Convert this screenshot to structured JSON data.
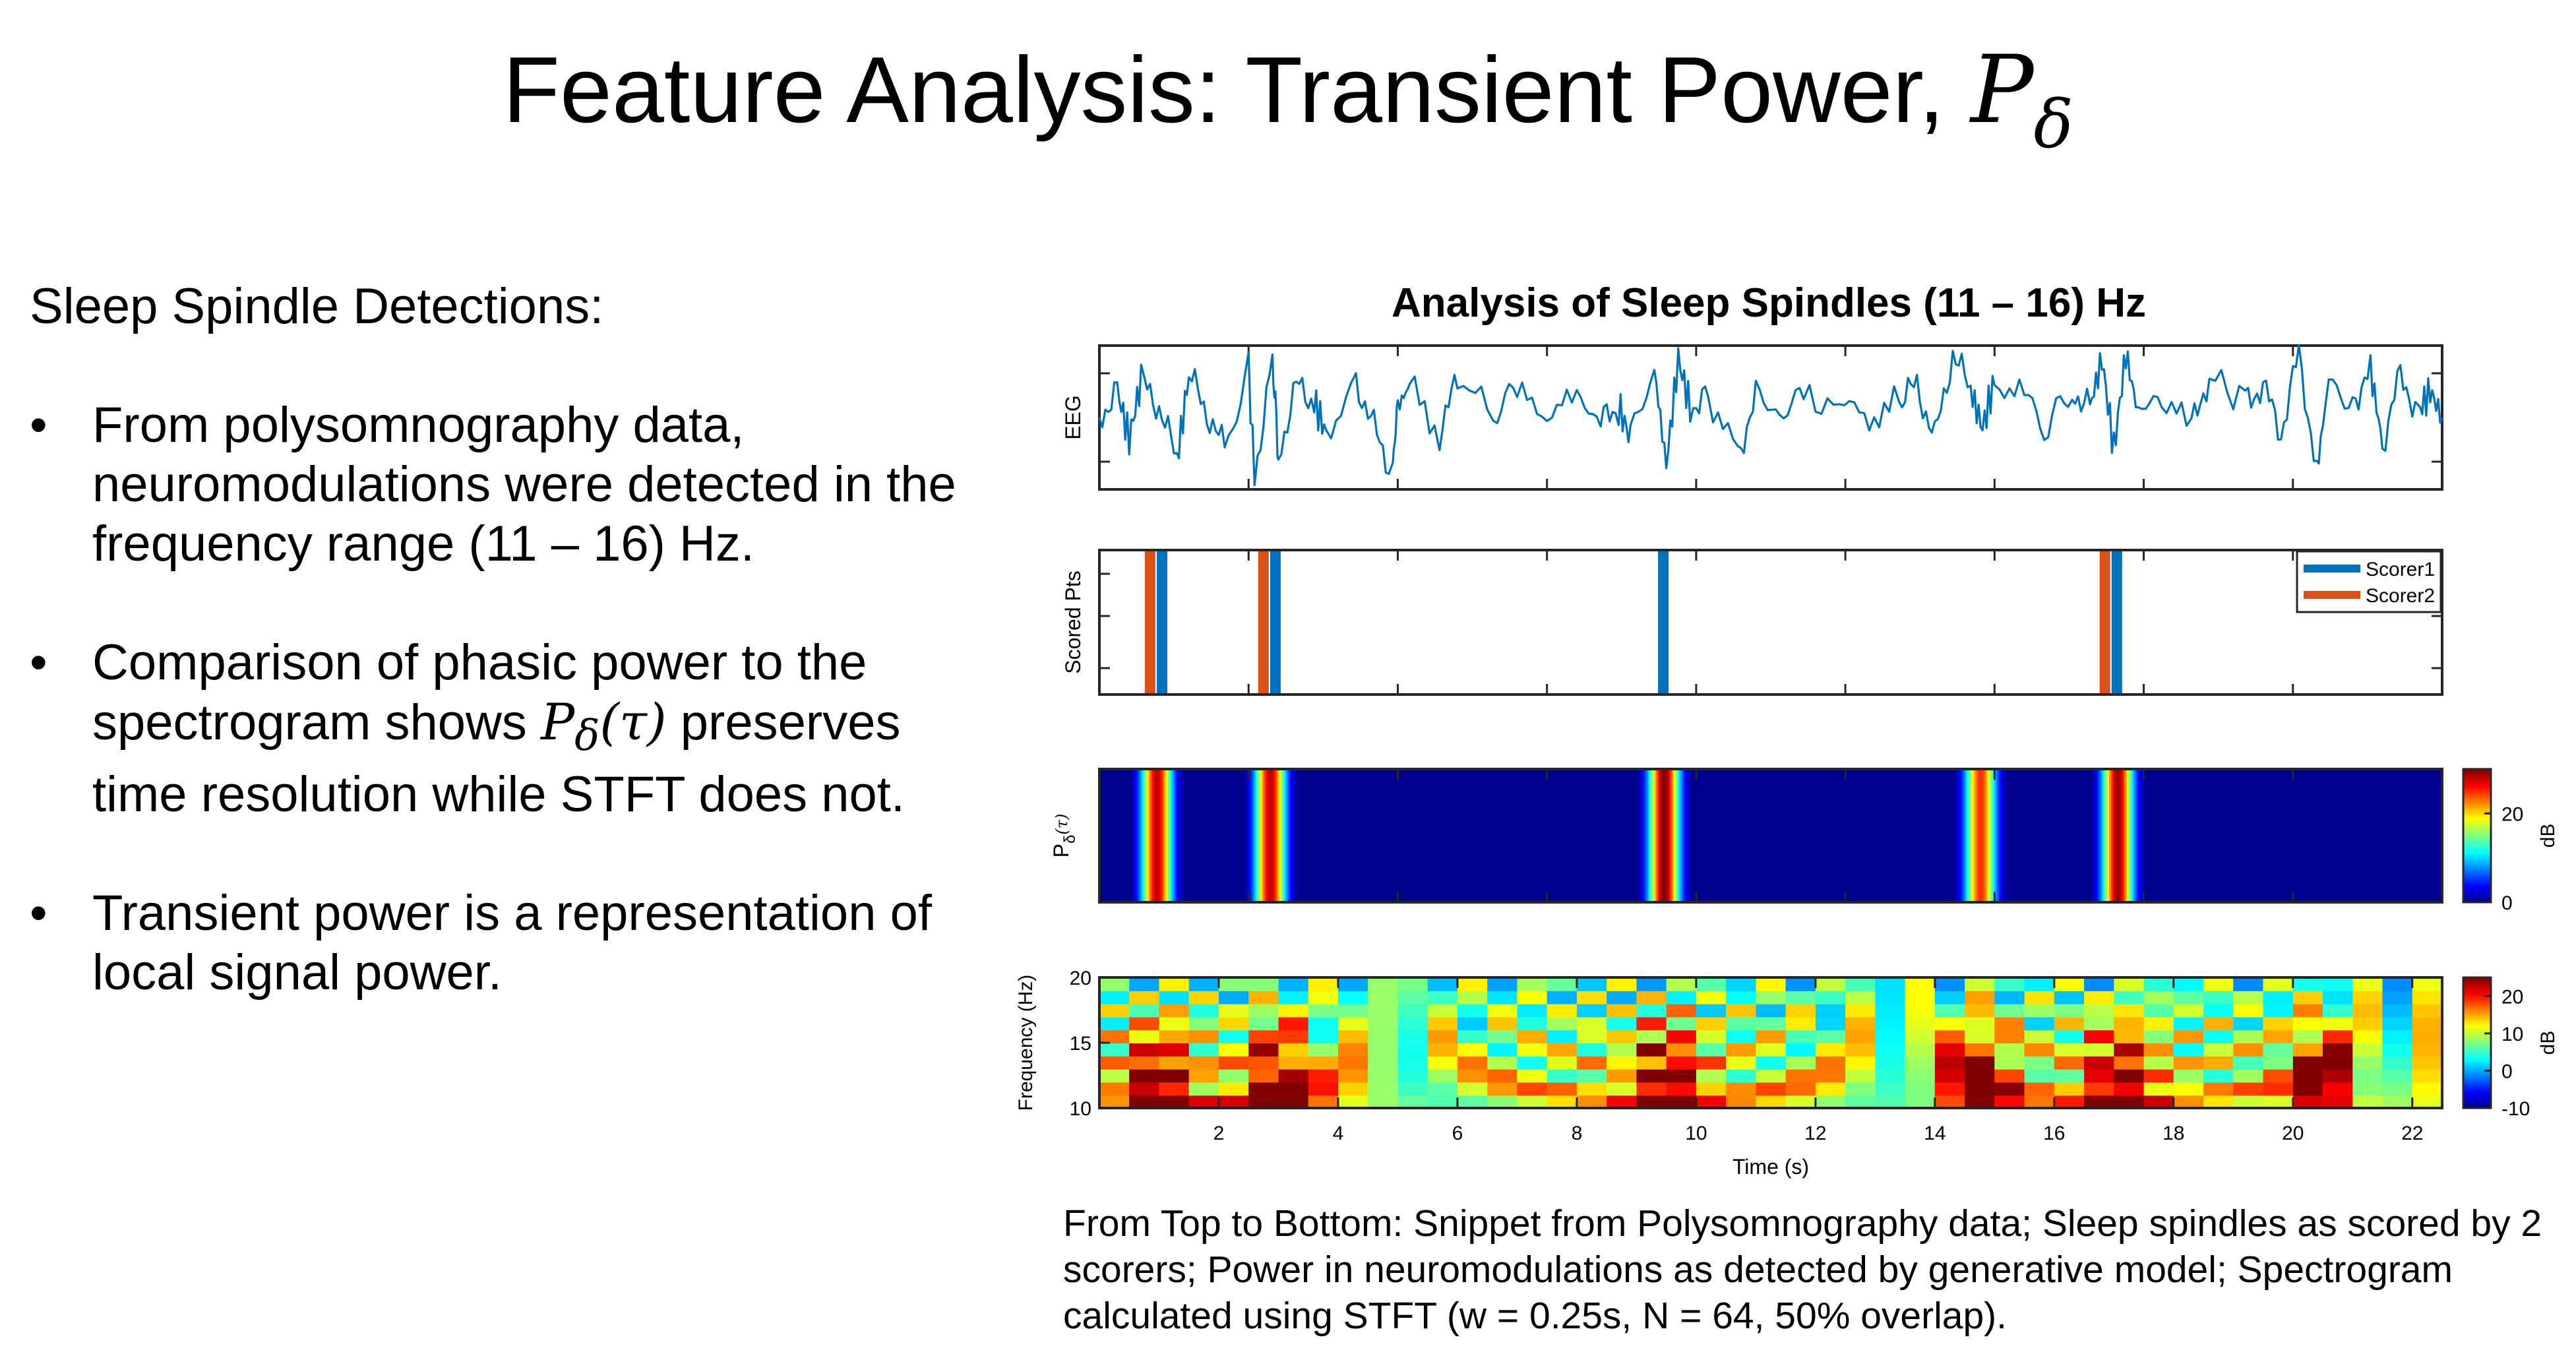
{
  "slide": {
    "title_text": "Feature Analysis: Transient Power, ",
    "title_symbol": "P",
    "title_subscript": "δ"
  },
  "left": {
    "intro": "Sleep Spindle Detections:",
    "bullet_glyph": "•",
    "bullets": [
      {
        "text": "From polysomnography data, neuromodulations were detected in the frequency range (11 – 16) Hz."
      },
      {
        "pre": "Comparison of phasic power to the spectrogram shows ",
        "sym": "P",
        "sub": "δ",
        "arg": "(τ)",
        "post": " preserves time resolution while STFT does not."
      },
      {
        "text": "Transient power is a representation of local signal power."
      }
    ]
  },
  "chart_data": [
    {
      "type": "line",
      "title": "Analysis of Sleep Spindles (11 – 16) Hz",
      "ylabel": "EEG",
      "xlim": [
        0,
        22.5
      ],
      "note": "raw EEG trace, no printed y ticks; amplitude shown in arbitrary units",
      "series": [
        {
          "color": "#0072BD",
          "x": [
            0,
            0.3,
            0.5,
            0.7,
            1.0,
            1.3,
            1.5,
            1.8,
            2.1,
            2.5,
            2.6,
            2.9,
            3.0,
            3.3,
            3.6,
            3.8,
            4.3,
            4.6,
            4.9,
            5.0,
            5.2,
            5.7,
            6.0,
            6.6,
            7.0,
            7.5,
            8.0,
            8.4,
            8.7,
            8.9,
            9.3,
            9.5,
            9.7,
            9.9,
            10.2,
            10.7,
            11.0,
            11.4,
            11.8,
            12.4,
            12.9,
            13.4,
            13.7,
            14.0,
            14.3,
            14.6,
            14.8,
            15.0,
            15.5,
            15.9,
            16.3,
            16.6,
            16.8,
            17.0,
            17.2,
            17.4,
            17.8,
            18.3,
            18.6,
            19.2,
            19.5,
            19.8,
            20.1,
            20.4,
            20.6,
            21.0,
            21.3,
            21.5,
            21.8,
            22.1,
            22.3,
            22.5
          ],
          "y": [
            0.0,
            0.5,
            -0.4,
            0.7,
            0.2,
            -0.8,
            0.8,
            0.1,
            -0.6,
            0.9,
            -1.1,
            1.1,
            -0.7,
            0.6,
            0.3,
            -0.3,
            0.7,
            -0.2,
            -1.0,
            0.2,
            0.6,
            -0.3,
            0.7,
            0.2,
            0.4,
            0.1,
            0.3,
            -0.1,
            0.2,
            -0.4,
            0.9,
            -0.9,
            1.1,
            0.2,
            0.4,
            -0.7,
            0.4,
            0.1,
            0.3,
            0.2,
            0.0,
            0.3,
            0.6,
            -0.4,
            1.2,
            0.5,
            -0.2,
            0.7,
            0.4,
            -0.2,
            0.5,
            0.2,
            1.1,
            -0.6,
            1.2,
            0.1,
            0.3,
            -0.2,
            0.8,
            0.3,
            0.6,
            -0.3,
            1.2,
            -1.0,
            0.7,
            0.3,
            0.9,
            -0.5,
            0.8,
            0.1,
            0.5,
            0.0
          ]
        }
      ]
    },
    {
      "type": "bar",
      "ylabel": "Scored Pts",
      "xlim": [
        0,
        22.5
      ],
      "legend_position": "top-right",
      "series": [
        {
          "name": "Scorer1",
          "color": "#0072BD",
          "x": [
            1.05,
            2.95,
            9.45,
            17.05
          ]
        },
        {
          "name": "Scorer2",
          "color": "#D95319",
          "x": [
            0.85,
            2.75,
            16.85
          ]
        }
      ]
    },
    {
      "type": "heatmap",
      "ylabel_main": "P",
      "ylabel_sub": "δ",
      "ylabel_arg": "(τ)",
      "xlim": [
        0,
        22.5
      ],
      "colorbar": {
        "label": "dB",
        "ticks": [
          0,
          20
        ],
        "range": [
          0,
          30
        ]
      },
      "events": [
        {
          "center": 0.95,
          "width": 0.55,
          "peak": 28
        },
        {
          "center": 2.85,
          "width": 0.55,
          "peak": 28
        },
        {
          "center": 9.45,
          "width": 0.55,
          "peak": 30
        },
        {
          "center": 14.75,
          "width": 0.55,
          "peak": 25
        },
        {
          "center": 17.05,
          "width": 0.55,
          "peak": 29
        }
      ]
    },
    {
      "type": "heatmap",
      "ylabel": "Frequency (Hz)",
      "xlabel": "Time (s)",
      "xlim": [
        0,
        22.5
      ],
      "ylim": [
        10,
        20
      ],
      "yticks": [
        10,
        15,
        20
      ],
      "xticks": [
        2,
        4,
        6,
        8,
        10,
        12,
        14,
        16,
        18,
        20,
        22
      ],
      "colorbar": {
        "label": "dB",
        "ticks": [
          -10,
          0,
          10,
          20
        ],
        "range": [
          -10,
          25
        ]
      },
      "cells": {
        "cols": 45,
        "rows": 10
      },
      "high_power_bursts_s": [
        1.0,
        3.0,
        9.5,
        14.7,
        17.1,
        20.5
      ]
    }
  ],
  "caption": {
    "text": "From Top to Bottom: Snippet from Polysomnography data; Sleep spindles as scored by 2 scorers; Power in neuromodulations as detected by generative model; Spectrogram calculated using STFT (w = 0.25s, N = 64, 50% overlap)."
  }
}
